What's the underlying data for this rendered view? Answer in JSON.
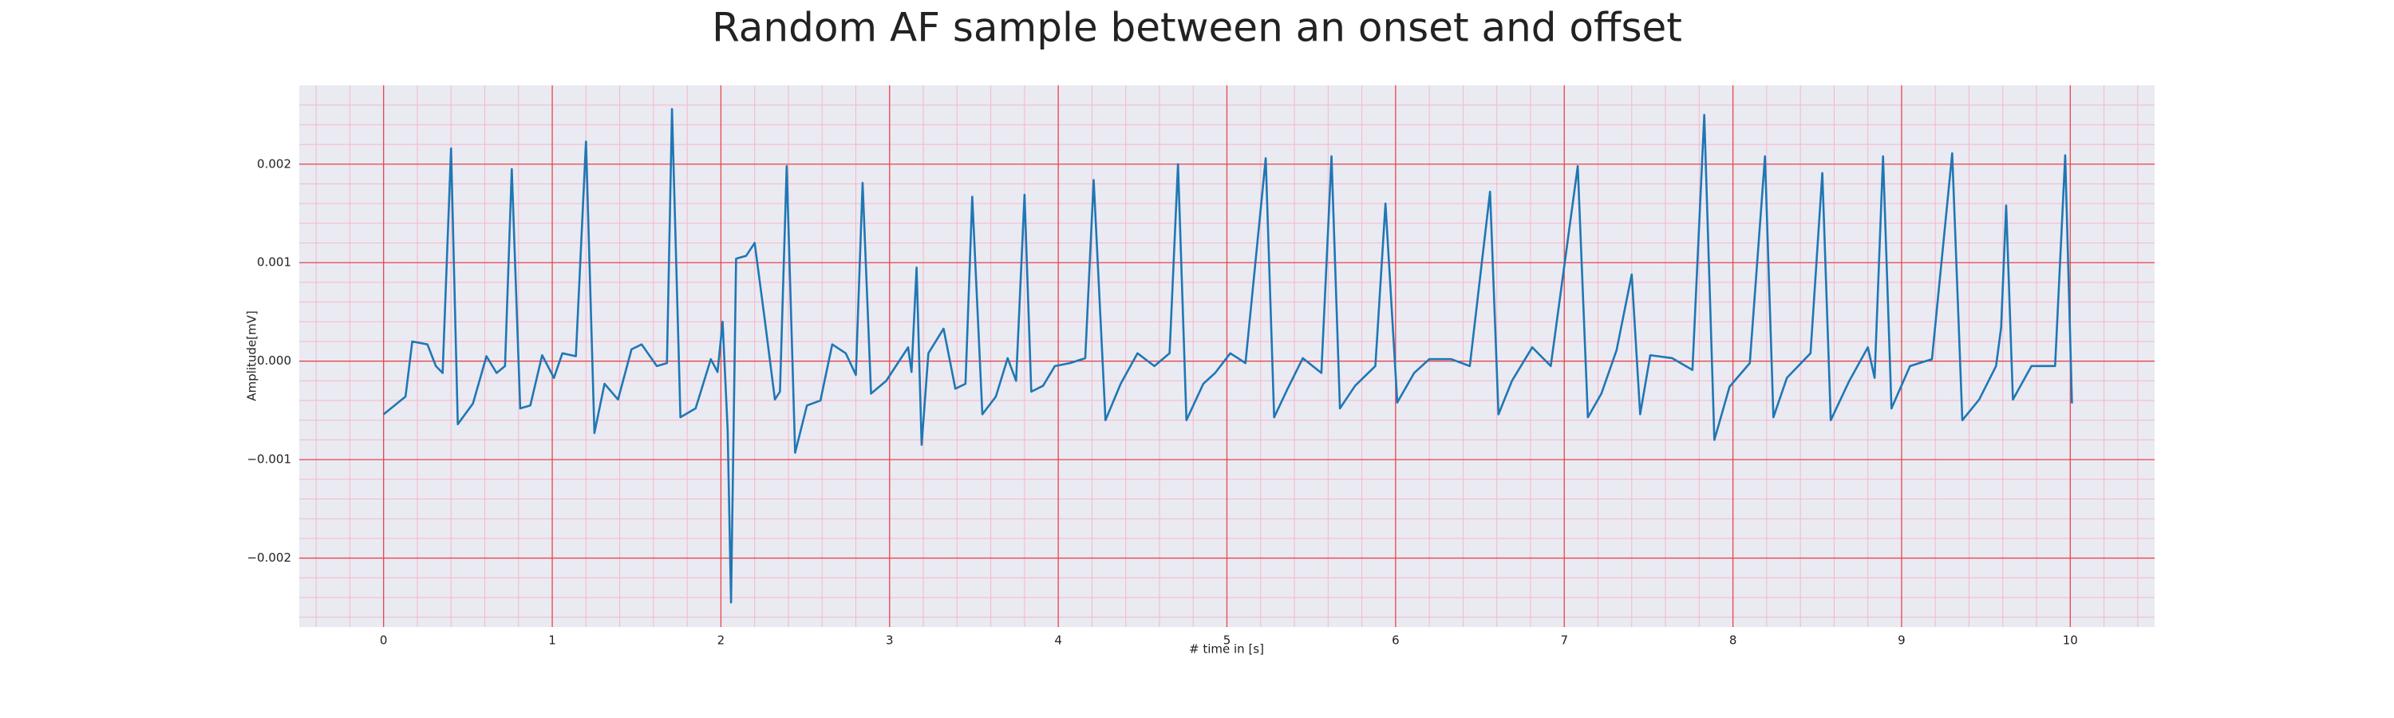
{
  "chart_data": {
    "type": "line",
    "title": "Random AF sample between an onset and offset",
    "x_label": "# time in [s]",
    "y_label": "Amplitude[mV]",
    "grid": true,
    "minor_grid": true,
    "xlim": [
      -0.5,
      10.5
    ],
    "ylim": [
      -0.0027,
      0.0028
    ],
    "xticks": [
      0,
      1,
      2,
      3,
      4,
      5,
      6,
      7,
      8,
      9,
      10
    ],
    "yticks": [
      {
        "value": -0.002,
        "label": "−0.002"
      },
      {
        "value": -0.001,
        "label": "−0.001"
      },
      {
        "value": 0,
        "label": "0.000"
      },
      0.001,
      0.002
    ],
    "x": [
      0,
      0.13,
      0.17,
      0.26,
      0.31,
      0.35,
      0.4,
      0.44,
      0.53,
      0.61,
      0.67,
      0.72,
      0.76,
      0.81,
      0.87,
      0.94,
      1.01,
      1.06,
      1.14,
      1.2,
      1.25,
      1.31,
      1.39,
      1.47,
      1.53,
      1.62,
      1.68,
      1.71,
      1.76,
      1.85,
      1.94,
      1.98,
      2.01,
      2.04,
      2.06,
      2.09,
      2.15,
      2.2,
      2.26,
      2.32,
      2.35,
      2.39,
      2.44,
      2.51,
      2.59,
      2.66,
      2.74,
      2.8,
      2.84,
      2.89,
      2.98,
      3.11,
      3.13,
      3.16,
      3.19,
      3.23,
      3.32,
      3.39,
      3.45,
      3.49,
      3.55,
      3.63,
      3.7,
      3.75,
      3.8,
      3.84,
      3.91,
      3.98,
      4.07,
      4.16,
      4.21,
      4.28,
      4.37,
      4.47,
      4.57,
      4.66,
      4.71,
      4.76,
      4.86,
      4.93,
      5.02,
      5.11,
      5.23,
      5.28,
      5.36,
      5.45,
      5.56,
      5.62,
      5.67,
      5.76,
      5.88,
      5.94,
      6.01,
      6.11,
      6.2,
      6.33,
      6.44,
      6.56,
      6.61,
      6.69,
      6.81,
      6.92,
      7.08,
      7.14,
      7.22,
      7.31,
      7.4,
      7.45,
      7.51,
      7.64,
      7.76,
      7.83,
      7.89,
      7.98,
      8.1,
      8.19,
      8.24,
      8.32,
      8.46,
      8.53,
      8.58,
      8.69,
      8.8,
      8.84,
      8.89,
      8.94,
      9.05,
      9.18,
      9.3,
      9.36,
      9.46,
      9.56,
      9.59,
      9.62,
      9.66,
      9.77,
      9.91,
      9.97,
      10.01
    ],
    "series": [
      {
        "color": "#1f77b4",
        "values": [
          -0.00054,
          -0.00036,
          0.0002,
          0.00017,
          -5e-05,
          -0.00012,
          0.00216,
          -0.00064,
          -0.00043,
          5e-05,
          -0.00012,
          -5e-05,
          0.00195,
          -0.00048,
          -0.00045,
          6e-05,
          -0.00017,
          8e-05,
          5e-05,
          0.00223,
          -0.00073,
          -0.00023,
          -0.00039,
          0.00012,
          0.00017,
          -5e-05,
          -2e-05,
          0.00256,
          -0.00057,
          -0.00048,
          2e-05,
          -0.00011,
          0.0004,
          -0.0007,
          -0.00245,
          0.00104,
          0.00107,
          0.0012,
          0.00042,
          -0.00039,
          -0.00031,
          0.00198,
          -0.00093,
          -0.00045,
          -0.0004,
          0.00017,
          8e-05,
          -0.00014,
          0.00181,
          -0.00033,
          -0.0002,
          0.00014,
          -0.00011,
          0.00095,
          -0.00085,
          8e-05,
          0.00033,
          -0.00028,
          -0.00023,
          0.00167,
          -0.00054,
          -0.00036,
          3e-05,
          -0.0002,
          0.00169,
          -0.00031,
          -0.00025,
          -5e-05,
          -2e-05,
          3e-05,
          0.00184,
          -0.0006,
          -0.00023,
          8e-05,
          -5e-05,
          8e-05,
          0.002,
          -0.0006,
          -0.00023,
          -0.00012,
          8e-05,
          -2e-05,
          0.00206,
          -0.00057,
          -0.00028,
          3e-05,
          -0.00012,
          0.00208,
          -0.00048,
          -0.00025,
          -5e-05,
          0.0016,
          -0.00042,
          -0.00012,
          2e-05,
          2e-05,
          -5e-05,
          0.00172,
          -0.00054,
          -0.0002,
          0.00014,
          -5e-05,
          0.00198,
          -0.00057,
          -0.00033,
          0.00011,
          0.00088,
          -0.00054,
          6e-05,
          3e-05,
          -9e-05,
          0.0025,
          -0.0008,
          -0.00026,
          -2e-05,
          0.00208,
          -0.00057,
          -0.00017,
          8e-05,
          0.00191,
          -0.0006,
          -0.0002,
          0.00014,
          -0.00017,
          0.00208,
          -0.00048,
          -5e-05,
          2e-05,
          0.00211,
          -0.0006,
          -0.00039,
          -5e-05,
          0.00034,
          0.00158,
          -0.00039,
          -5e-05,
          -5e-05,
          0.00209,
          -0.00043
        ]
      }
    ]
  }
}
